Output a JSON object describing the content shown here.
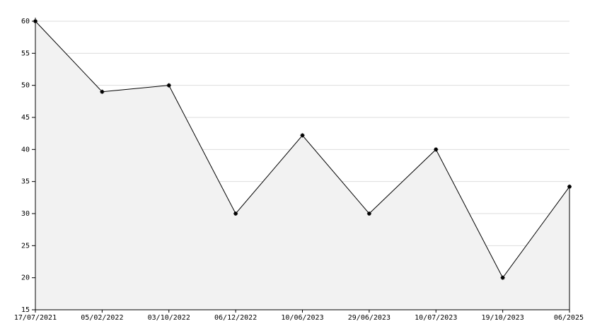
{
  "chart_data": {
    "type": "area",
    "categories": [
      "17/07/2021",
      "05/02/2022",
      "03/10/2022",
      "06/12/2022",
      "10/06/2023",
      "29/06/2023",
      "10/07/2023",
      "19/10/2023",
      "06/2025"
    ],
    "values": [
      60,
      49,
      50,
      30,
      42.2,
      30,
      40,
      20,
      34.2
    ],
    "color": "#000000",
    "fill": "#f2f2f2",
    "ylim": [
      15,
      60
    ],
    "yticks": [
      15,
      20,
      25,
      30,
      35,
      40,
      45,
      50,
      55,
      60
    ],
    "grid": true
  }
}
